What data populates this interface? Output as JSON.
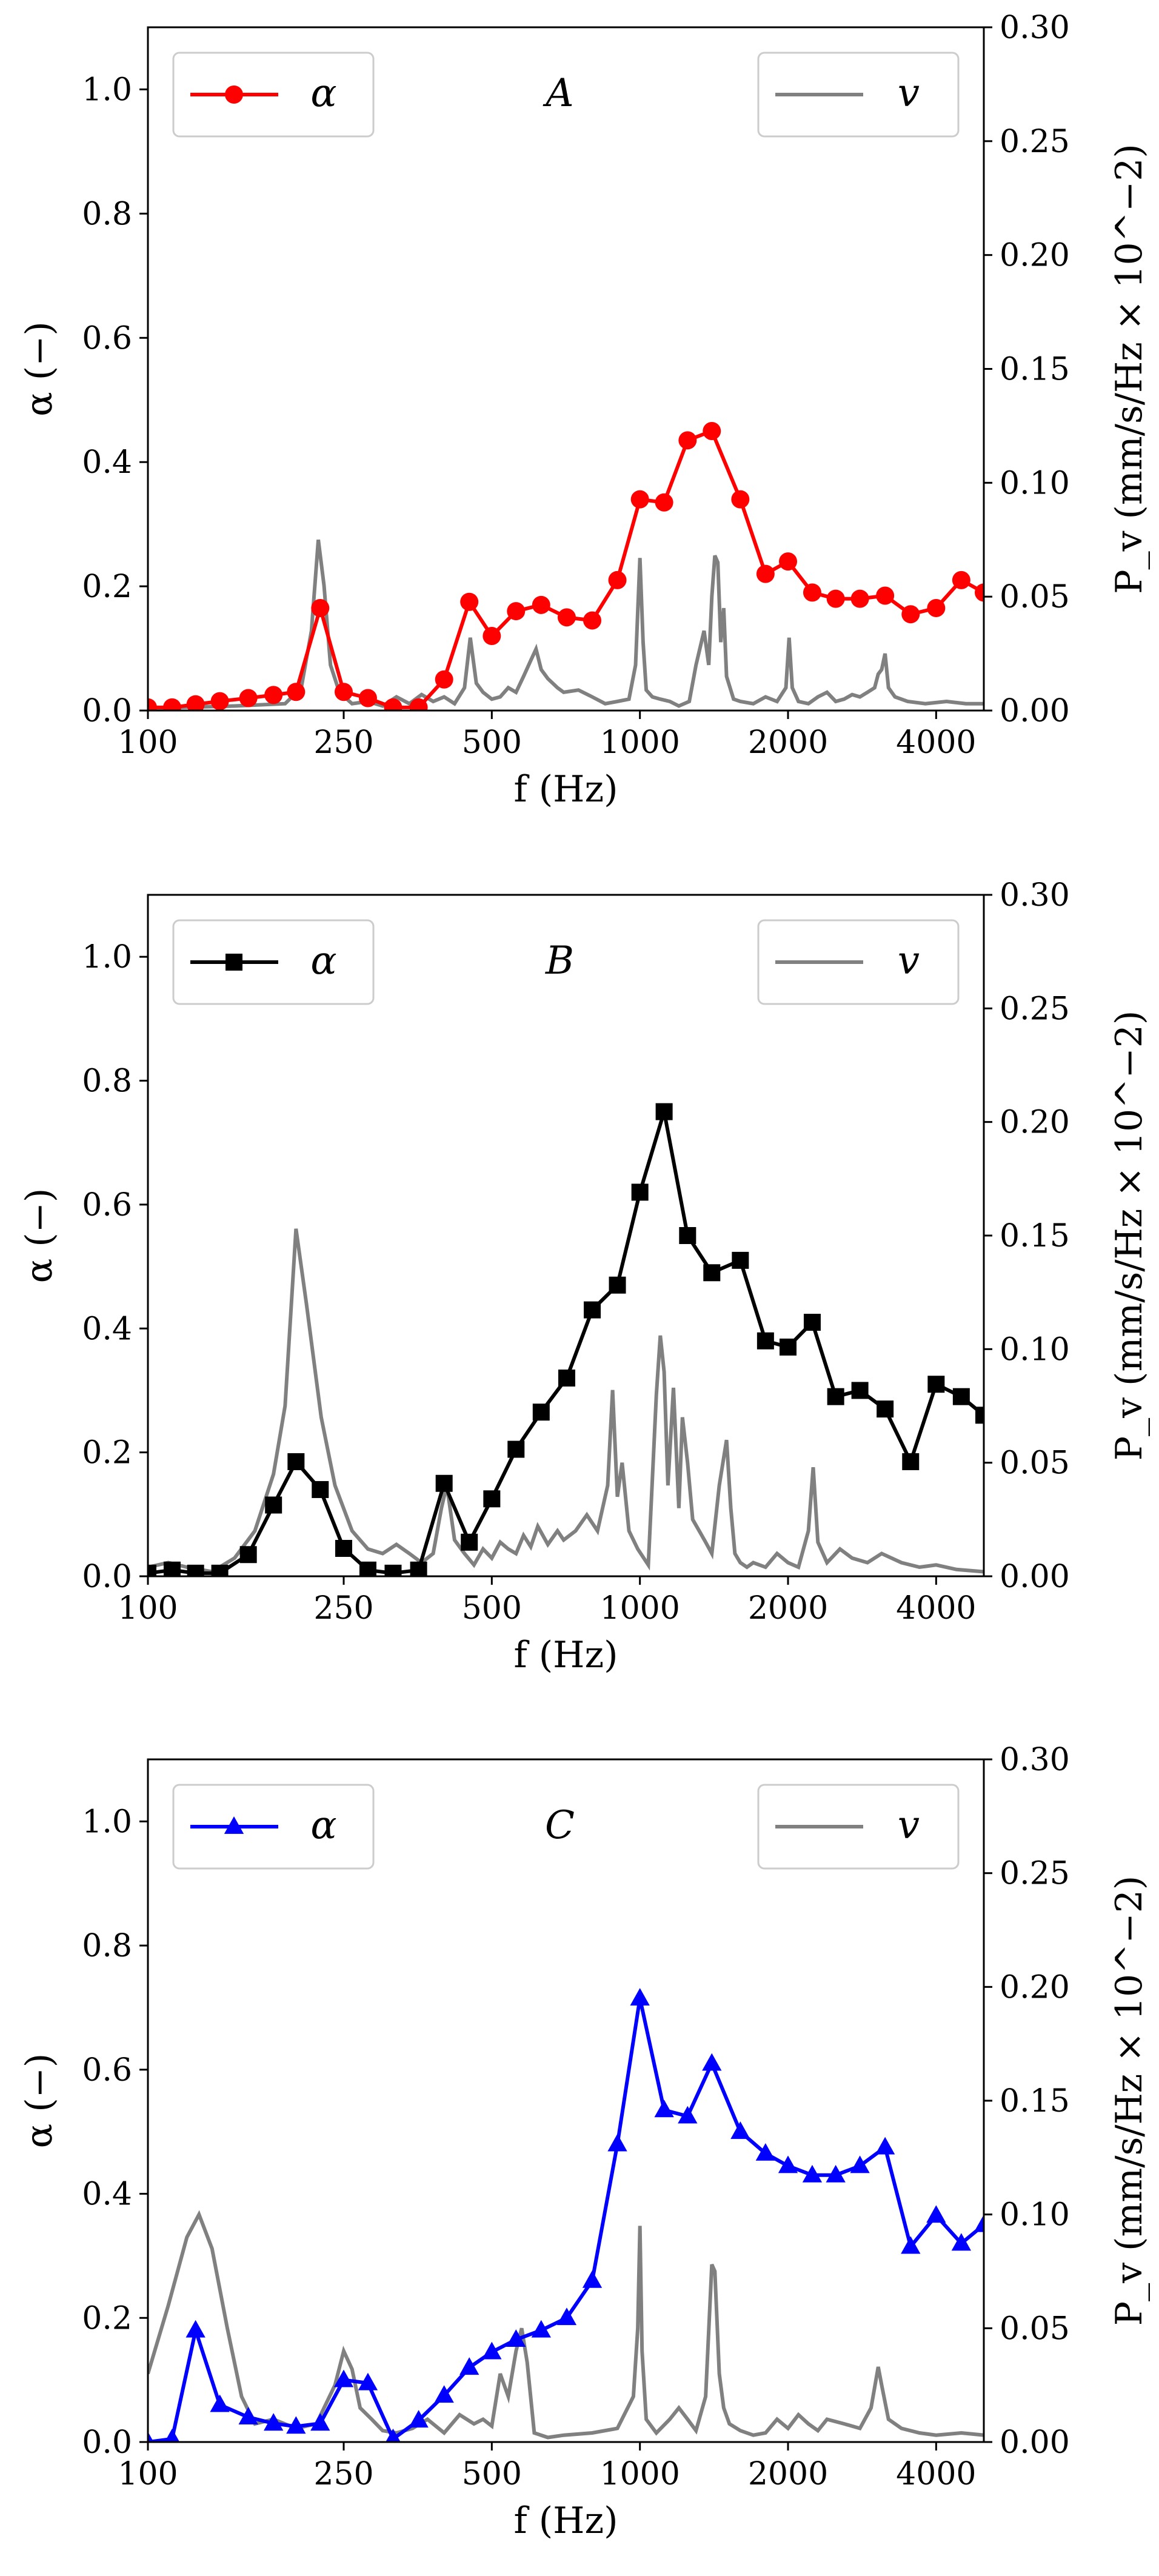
{
  "x_ticks": [
    100,
    250,
    500,
    1000,
    2000,
    4000
  ],
  "x_tick_labels": [
    "100",
    "250",
    "500",
    "1000",
    "2000",
    "4000"
  ],
  "xlabel": "f (Hz)",
  "ylabel_left": "α (−)",
  "ylabel_right": "P_v (mm/s/Hz × 10^−2)",
  "y_left_ticks": [
    "0.0",
    "0.2",
    "0.4",
    "0.6",
    "0.8",
    "1.0"
  ],
  "y_right_ticks": [
    "0.00",
    "0.05",
    "0.10",
    "0.15",
    "0.20",
    "0.25",
    "0.30"
  ],
  "colors": {
    "A": "#ff0000",
    "B": "#000000",
    "C": "#0000ff",
    "v": "#808080"
  },
  "chart_data": [
    {
      "type": "line",
      "panel": "A",
      "marker": "circle",
      "title": "A",
      "xscale": "log",
      "xlim": [
        100,
        5000
      ],
      "ylim_left": [
        0,
        1.1
      ],
      "ylim_right": [
        0,
        0.3
      ],
      "legend": [
        "α",
        "v"
      ],
      "series": [
        {
          "name": "α",
          "axis": "left",
          "x": [
            100,
            112,
            125,
            140,
            160,
            180,
            200,
            224,
            250,
            280,
            315,
            355,
            400,
            450,
            500,
            560,
            630,
            710,
            800,
            900,
            1000,
            1120,
            1250,
            1400,
            1600,
            1800,
            2000,
            2240,
            2500,
            2800,
            3150,
            3550,
            4000,
            4500,
            5000
          ],
          "y": [
            0.005,
            0.005,
            0.01,
            0.015,
            0.02,
            0.025,
            0.03,
            0.165,
            0.03,
            0.02,
            0.005,
            0.005,
            0.05,
            0.175,
            0.12,
            0.16,
            0.17,
            0.15,
            0.145,
            0.21,
            0.34,
            0.335,
            0.435,
            0.45,
            0.34,
            0.22,
            0.24,
            0.19,
            0.18,
            0.18,
            0.185,
            0.155,
            0.165,
            0.21,
            0.19
          ]
        },
        {
          "name": "v",
          "axis": "right",
          "x": [
            100,
            150,
            190,
            205,
            215,
            222,
            228,
            235,
            245,
            260,
            280,
            300,
            320,
            340,
            360,
            380,
            400,
            420,
            440,
            452,
            465,
            480,
            500,
            520,
            540,
            560,
            580,
            600,
            615,
            630,
            650,
            680,
            700,
            750,
            800,
            850,
            900,
            950,
            980,
            1000,
            1015,
            1030,
            1060,
            1100,
            1150,
            1200,
            1260,
            1300,
            1350,
            1380,
            1400,
            1420,
            1440,
            1460,
            1480,
            1500,
            1550,
            1600,
            1700,
            1800,
            1900,
            1980,
            2010,
            2040,
            2100,
            2200,
            2300,
            2400,
            2500,
            2600,
            2700,
            2800,
            2900,
            3000,
            3050,
            3100,
            3150,
            3200,
            3300,
            3500,
            3800,
            4200,
            4600,
            5000
          ],
          "y": [
            0.001,
            0.002,
            0.003,
            0.01,
            0.035,
            0.075,
            0.055,
            0.02,
            0.008,
            0.003,
            0.004,
            0.002,
            0.006,
            0.003,
            0.007,
            0.004,
            0.006,
            0.003,
            0.01,
            0.032,
            0.012,
            0.008,
            0.005,
            0.006,
            0.01,
            0.008,
            0.015,
            0.022,
            0.027,
            0.018,
            0.014,
            0.01,
            0.008,
            0.009,
            0.006,
            0.003,
            0.004,
            0.005,
            0.02,
            0.067,
            0.03,
            0.009,
            0.006,
            0.005,
            0.004,
            0.002,
            0.004,
            0.02,
            0.035,
            0.02,
            0.05,
            0.068,
            0.065,
            0.03,
            0.045,
            0.015,
            0.005,
            0.004,
            0.003,
            0.006,
            0.004,
            0.01,
            0.032,
            0.01,
            0.004,
            0.003,
            0.006,
            0.008,
            0.004,
            0.005,
            0.007,
            0.006,
            0.008,
            0.01,
            0.016,
            0.018,
            0.025,
            0.01,
            0.006,
            0.004,
            0.003,
            0.004,
            0.003,
            0.003
          ]
        }
      ]
    },
    {
      "type": "line",
      "panel": "B",
      "marker": "square",
      "title": "B",
      "xscale": "log",
      "xlim": [
        100,
        5000
      ],
      "ylim_left": [
        0,
        1.1
      ],
      "ylim_right": [
        0,
        0.3
      ],
      "legend": [
        "α",
        "v"
      ],
      "series": [
        {
          "name": "α",
          "axis": "left",
          "x": [
            100,
            112,
            125,
            140,
            160,
            180,
            200,
            224,
            250,
            280,
            315,
            355,
            400,
            450,
            500,
            560,
            630,
            710,
            800,
            900,
            1000,
            1120,
            1250,
            1400,
            1600,
            1800,
            2000,
            2240,
            2500,
            2800,
            3150,
            3550,
            4000,
            4500,
            5000
          ],
          "y": [
            0.005,
            0.01,
            0.005,
            0.005,
            0.035,
            0.115,
            0.185,
            0.14,
            0.045,
            0.01,
            0.005,
            0.01,
            0.15,
            0.055,
            0.125,
            0.205,
            0.265,
            0.32,
            0.43,
            0.47,
            0.62,
            0.75,
            0.55,
            0.49,
            0.51,
            0.38,
            0.37,
            0.41,
            0.29,
            0.3,
            0.27,
            0.185,
            0.31,
            0.29,
            0.26
          ]
        },
        {
          "name": "v",
          "axis": "right",
          "x": [
            100,
            110,
            120,
            135,
            150,
            165,
            180,
            190,
            200,
            210,
            225,
            240,
            260,
            280,
            300,
            320,
            340,
            360,
            380,
            395,
            405,
            420,
            440,
            460,
            480,
            500,
            520,
            540,
            560,
            580,
            600,
            620,
            650,
            680,
            700,
            740,
            780,
            820,
            860,
            880,
            900,
            920,
            950,
            990,
            1040,
            1080,
            1100,
            1120,
            1140,
            1170,
            1200,
            1220,
            1250,
            1280,
            1320,
            1360,
            1400,
            1450,
            1500,
            1530,
            1560,
            1600,
            1650,
            1700,
            1800,
            1900,
            2000,
            2100,
            2200,
            2250,
            2300,
            2400,
            2550,
            2700,
            2900,
            3100,
            3400,
            3700,
            4000,
            4400,
            5000
          ],
          "y": [
            0.004,
            0.006,
            0.004,
            0.002,
            0.008,
            0.02,
            0.045,
            0.075,
            0.153,
            0.12,
            0.07,
            0.04,
            0.02,
            0.012,
            0.01,
            0.014,
            0.01,
            0.006,
            0.01,
            0.03,
            0.04,
            0.016,
            0.01,
            0.005,
            0.012,
            0.008,
            0.015,
            0.012,
            0.01,
            0.018,
            0.013,
            0.022,
            0.014,
            0.02,
            0.016,
            0.02,
            0.027,
            0.02,
            0.04,
            0.082,
            0.035,
            0.05,
            0.02,
            0.012,
            0.005,
            0.08,
            0.106,
            0.09,
            0.04,
            0.083,
            0.03,
            0.07,
            0.05,
            0.025,
            0.02,
            0.015,
            0.01,
            0.04,
            0.06,
            0.03,
            0.01,
            0.006,
            0.004,
            0.006,
            0.004,
            0.01,
            0.006,
            0.004,
            0.02,
            0.048,
            0.015,
            0.006,
            0.012,
            0.008,
            0.006,
            0.01,
            0.006,
            0.004,
            0.005,
            0.003,
            0.002
          ]
        }
      ]
    },
    {
      "type": "line",
      "panel": "C",
      "marker": "triangle",
      "title": "C",
      "xscale": "log",
      "xlim": [
        100,
        5000
      ],
      "ylim_left": [
        0,
        1.1
      ],
      "ylim_right": [
        0,
        0.3
      ],
      "legend": [
        "α",
        "v"
      ],
      "series": [
        {
          "name": "α",
          "axis": "left",
          "x": [
            100,
            112,
            125,
            140,
            160,
            180,
            200,
            224,
            250,
            280,
            315,
            355,
            400,
            450,
            500,
            560,
            630,
            710,
            800,
            900,
            1000,
            1120,
            1250,
            1400,
            1600,
            1800,
            2000,
            2240,
            2500,
            2800,
            3150,
            3550,
            4000,
            4500,
            5000
          ],
          "y": [
            0,
            0.005,
            0.18,
            0.06,
            0.04,
            0.03,
            0.025,
            0.03,
            0.1,
            0.095,
            0.005,
            0.035,
            0.075,
            0.12,
            0.145,
            0.165,
            0.18,
            0.2,
            0.26,
            0.48,
            0.715,
            0.535,
            0.525,
            0.61,
            0.5,
            0.465,
            0.445,
            0.43,
            0.43,
            0.445,
            0.475,
            0.315,
            0.365,
            0.32,
            0.35
          ]
        },
        {
          "name": "v",
          "axis": "right",
          "x": [
            100,
            110,
            120,
            127,
            135,
            145,
            155,
            165,
            180,
            200,
            220,
            240,
            250,
            260,
            270,
            285,
            300,
            320,
            345,
            370,
            400,
            430,
            460,
            480,
            500,
            520,
            540,
            560,
            575,
            590,
            610,
            650,
            700,
            800,
            900,
            970,
            990,
            1000,
            1010,
            1030,
            1080,
            1150,
            1200,
            1250,
            1300,
            1360,
            1400,
            1420,
            1450,
            1480,
            1520,
            1600,
            1700,
            1800,
            1900,
            2000,
            2100,
            2200,
            2300,
            2400,
            2600,
            2800,
            2950,
            3050,
            3100,
            3200,
            3400,
            3700,
            4000,
            4500,
            5000
          ],
          "y": [
            0.03,
            0.06,
            0.09,
            0.1,
            0.085,
            0.05,
            0.02,
            0.008,
            0.01,
            0.006,
            0.008,
            0.025,
            0.04,
            0.032,
            0.015,
            0.01,
            0.005,
            0.004,
            0.006,
            0.01,
            0.004,
            0.012,
            0.008,
            0.01,
            0.007,
            0.03,
            0.02,
            0.04,
            0.05,
            0.035,
            0.004,
            0.002,
            0.003,
            0.004,
            0.006,
            0.02,
            0.05,
            0.095,
            0.04,
            0.01,
            0.004,
            0.01,
            0.015,
            0.01,
            0.005,
            0.02,
            0.078,
            0.075,
            0.03,
            0.015,
            0.008,
            0.005,
            0.003,
            0.004,
            0.01,
            0.006,
            0.012,
            0.008,
            0.005,
            0.01,
            0.008,
            0.006,
            0.015,
            0.033,
            0.025,
            0.01,
            0.006,
            0.004,
            0.003,
            0.004,
            0.003
          ]
        }
      ]
    }
  ]
}
